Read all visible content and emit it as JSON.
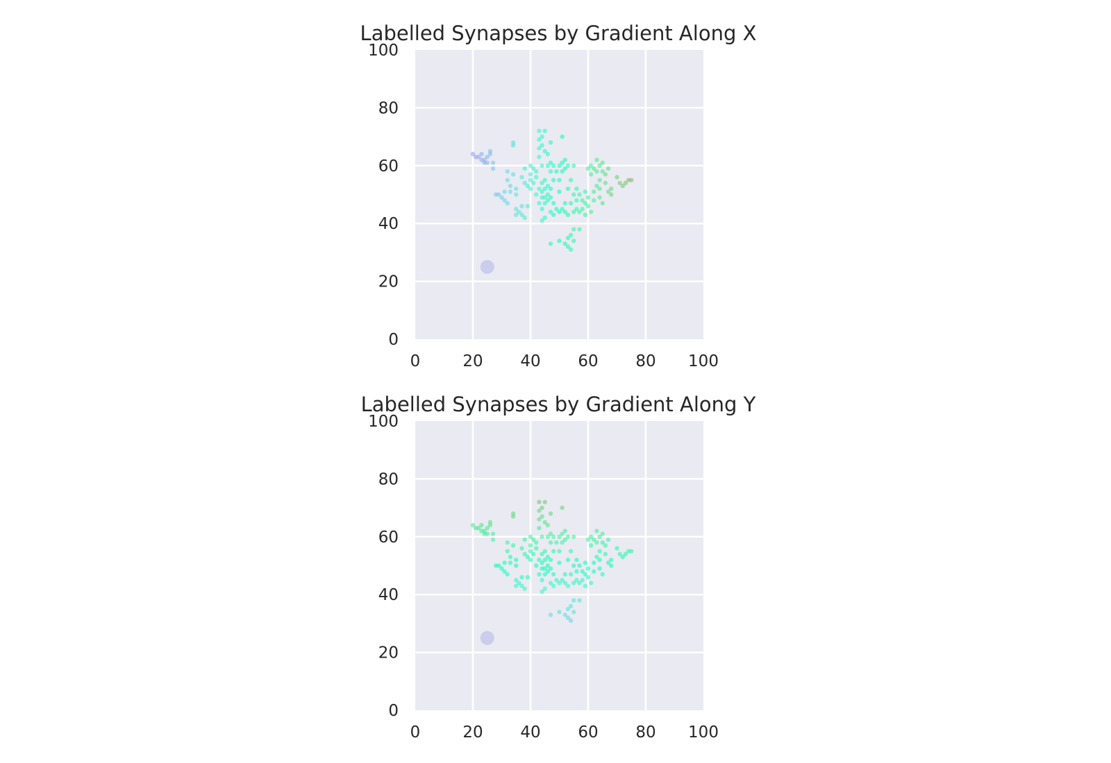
{
  "chart_data": [
    {
      "type": "scatter",
      "title": "Labelled Synapses by Gradient Along X",
      "xlabel": "",
      "ylabel": "",
      "xlim": [
        0,
        100
      ],
      "ylim": [
        0,
        100
      ],
      "xticks": [
        "0",
        "20",
        "40",
        "60",
        "80",
        "100"
      ],
      "yticks": [
        "0",
        "20",
        "40",
        "60",
        "80",
        "100"
      ],
      "grid": true,
      "background": "#eaeaf2",
      "colormap": "rainbow",
      "color_range": [
        0,
        100
      ],
      "color_by": "x",
      "marker": {
        "x": 25,
        "y": 25,
        "color": "#aab0e6"
      },
      "points": [
        [
          20,
          64
        ],
        [
          21,
          63
        ],
        [
          22,
          63
        ],
        [
          23,
          62
        ],
        [
          23,
          64
        ],
        [
          24,
          62
        ],
        [
          24,
          61
        ],
        [
          25,
          63
        ],
        [
          25,
          61
        ],
        [
          26,
          65
        ],
        [
          26,
          64
        ],
        [
          27,
          61
        ],
        [
          27,
          59
        ],
        [
          28,
          50
        ],
        [
          29,
          50
        ],
        [
          30,
          49
        ],
        [
          31,
          51
        ],
        [
          31,
          48
        ],
        [
          32,
          47
        ],
        [
          32,
          55
        ],
        [
          33,
          53
        ],
        [
          33,
          51
        ],
        [
          32,
          58
        ],
        [
          34,
          57
        ],
        [
          34,
          67
        ],
        [
          34,
          68
        ],
        [
          35,
          50
        ],
        [
          35,
          52
        ],
        [
          35,
          45
        ],
        [
          35,
          43
        ],
        [
          36,
          44
        ],
        [
          37,
          43
        ],
        [
          37,
          46
        ],
        [
          37,
          56
        ],
        [
          38,
          54
        ],
        [
          38,
          42
        ],
        [
          39,
          53
        ],
        [
          39,
          46
        ],
        [
          38,
          59
        ],
        [
          40,
          57
        ],
        [
          40,
          55
        ],
        [
          40,
          52
        ],
        [
          40,
          60
        ],
        [
          41,
          59
        ],
        [
          41,
          54
        ],
        [
          42,
          56
        ],
        [
          42,
          50
        ],
        [
          42,
          58
        ],
        [
          43,
          72
        ],
        [
          43,
          69
        ],
        [
          43,
          66
        ],
        [
          43,
          63
        ],
        [
          43,
          52
        ],
        [
          43,
          47
        ],
        [
          44,
          70
        ],
        [
          44,
          67
        ],
        [
          44,
          60
        ],
        [
          44,
          54
        ],
        [
          44,
          51
        ],
        [
          44,
          49
        ],
        [
          44,
          45
        ],
        [
          44,
          41
        ],
        [
          45,
          72
        ],
        [
          45,
          65
        ],
        [
          45,
          55
        ],
        [
          45,
          52
        ],
        [
          45,
          49
        ],
        [
          45,
          47
        ],
        [
          45,
          42
        ],
        [
          46,
          64
        ],
        [
          46,
          60
        ],
        [
          46,
          53
        ],
        [
          46,
          50
        ],
        [
          46,
          48
        ],
        [
          47,
          68
        ],
        [
          47,
          61
        ],
        [
          47,
          58
        ],
        [
          47,
          52
        ],
        [
          47,
          49
        ],
        [
          47,
          44
        ],
        [
          47,
          33
        ],
        [
          48,
          60
        ],
        [
          48,
          55
        ],
        [
          48,
          47
        ],
        [
          48,
          43
        ],
        [
          49,
          58
        ],
        [
          49,
          45
        ],
        [
          50,
          60
        ],
        [
          50,
          55
        ],
        [
          50,
          51
        ],
        [
          50,
          44
        ],
        [
          50,
          34
        ],
        [
          51,
          61
        ],
        [
          51,
          58
        ],
        [
          51,
          70
        ],
        [
          51,
          45
        ],
        [
          52,
          62
        ],
        [
          52,
          59
        ],
        [
          52,
          47
        ],
        [
          52,
          44
        ],
        [
          52,
          33
        ],
        [
          53,
          60
        ],
        [
          53,
          52
        ],
        [
          53,
          43
        ],
        [
          53,
          35
        ],
        [
          53,
          32
        ],
        [
          54,
          55
        ],
        [
          54,
          47
        ],
        [
          54,
          36
        ],
        [
          54,
          31
        ],
        [
          55,
          60
        ],
        [
          55,
          50
        ],
        [
          55,
          44
        ],
        [
          55,
          38
        ],
        [
          55,
          34
        ],
        [
          56,
          52
        ],
        [
          56,
          48
        ],
        [
          56,
          45
        ],
        [
          57,
          50
        ],
        [
          57,
          44
        ],
        [
          57,
          38
        ],
        [
          58,
          48
        ],
        [
          58,
          45
        ],
        [
          59,
          51
        ],
        [
          59,
          47
        ],
        [
          59,
          43
        ],
        [
          60,
          59
        ],
        [
          60,
          49
        ],
        [
          60,
          46
        ],
        [
          61,
          60
        ],
        [
          61,
          57
        ],
        [
          61,
          44
        ],
        [
          62,
          59
        ],
        [
          62,
          51
        ],
        [
          62,
          48
        ],
        [
          63,
          62
        ],
        [
          63,
          58
        ],
        [
          63,
          53
        ],
        [
          64,
          60
        ],
        [
          64,
          55
        ],
        [
          64,
          52
        ],
        [
          64,
          49
        ],
        [
          65,
          61
        ],
        [
          65,
          58
        ],
        [
          65,
          47
        ],
        [
          66,
          57
        ],
        [
          66,
          54
        ],
        [
          67,
          59
        ],
        [
          67,
          51
        ],
        [
          68,
          52
        ],
        [
          68,
          50
        ],
        [
          70,
          56
        ],
        [
          71,
          54
        ],
        [
          72,
          53
        ],
        [
          73,
          54
        ],
        [
          74,
          55
        ],
        [
          75,
          55
        ]
      ]
    },
    {
      "type": "scatter",
      "title": "Labelled Synapses by Gradient Along Y",
      "xlabel": "",
      "ylabel": "",
      "xlim": [
        0,
        100
      ],
      "ylim": [
        0,
        100
      ],
      "xticks": [
        "0",
        "20",
        "40",
        "60",
        "80",
        "100"
      ],
      "yticks": [
        "0",
        "20",
        "40",
        "60",
        "80",
        "100"
      ],
      "grid": true,
      "background": "#eaeaf2",
      "colormap": "rainbow",
      "color_range": [
        0,
        100
      ],
      "color_by": "y",
      "marker": {
        "x": 25,
        "y": 25,
        "color": "#aab0e6"
      },
      "points": [
        [
          20,
          64
        ],
        [
          21,
          63
        ],
        [
          22,
          63
        ],
        [
          23,
          62
        ],
        [
          23,
          64
        ],
        [
          24,
          62
        ],
        [
          24,
          61
        ],
        [
          25,
          63
        ],
        [
          25,
          61
        ],
        [
          26,
          65
        ],
        [
          26,
          64
        ],
        [
          27,
          61
        ],
        [
          27,
          59
        ],
        [
          28,
          50
        ],
        [
          29,
          50
        ],
        [
          30,
          49
        ],
        [
          31,
          51
        ],
        [
          31,
          48
        ],
        [
          32,
          47
        ],
        [
          32,
          55
        ],
        [
          33,
          53
        ],
        [
          33,
          51
        ],
        [
          32,
          58
        ],
        [
          34,
          57
        ],
        [
          34,
          67
        ],
        [
          34,
          68
        ],
        [
          35,
          50
        ],
        [
          35,
          52
        ],
        [
          35,
          45
        ],
        [
          35,
          43
        ],
        [
          36,
          44
        ],
        [
          37,
          43
        ],
        [
          37,
          46
        ],
        [
          37,
          56
        ],
        [
          38,
          54
        ],
        [
          38,
          42
        ],
        [
          39,
          53
        ],
        [
          39,
          46
        ],
        [
          38,
          59
        ],
        [
          40,
          57
        ],
        [
          40,
          55
        ],
        [
          40,
          52
        ],
        [
          40,
          60
        ],
        [
          41,
          59
        ],
        [
          41,
          54
        ],
        [
          42,
          56
        ],
        [
          42,
          50
        ],
        [
          42,
          58
        ],
        [
          43,
          72
        ],
        [
          43,
          69
        ],
        [
          43,
          66
        ],
        [
          43,
          63
        ],
        [
          43,
          52
        ],
        [
          43,
          47
        ],
        [
          44,
          70
        ],
        [
          44,
          67
        ],
        [
          44,
          60
        ],
        [
          44,
          54
        ],
        [
          44,
          51
        ],
        [
          44,
          49
        ],
        [
          44,
          45
        ],
        [
          44,
          41
        ],
        [
          45,
          72
        ],
        [
          45,
          65
        ],
        [
          45,
          55
        ],
        [
          45,
          52
        ],
        [
          45,
          49
        ],
        [
          45,
          47
        ],
        [
          45,
          42
        ],
        [
          46,
          64
        ],
        [
          46,
          60
        ],
        [
          46,
          53
        ],
        [
          46,
          50
        ],
        [
          46,
          48
        ],
        [
          47,
          68
        ],
        [
          47,
          61
        ],
        [
          47,
          58
        ],
        [
          47,
          52
        ],
        [
          47,
          49
        ],
        [
          47,
          44
        ],
        [
          47,
          33
        ],
        [
          48,
          60
        ],
        [
          48,
          55
        ],
        [
          48,
          47
        ],
        [
          48,
          43
        ],
        [
          49,
          58
        ],
        [
          49,
          45
        ],
        [
          50,
          60
        ],
        [
          50,
          55
        ],
        [
          50,
          51
        ],
        [
          50,
          44
        ],
        [
          50,
          34
        ],
        [
          51,
          61
        ],
        [
          51,
          58
        ],
        [
          51,
          70
        ],
        [
          51,
          45
        ],
        [
          52,
          62
        ],
        [
          52,
          59
        ],
        [
          52,
          47
        ],
        [
          52,
          44
        ],
        [
          52,
          33
        ],
        [
          53,
          60
        ],
        [
          53,
          52
        ],
        [
          53,
          43
        ],
        [
          53,
          35
        ],
        [
          53,
          32
        ],
        [
          54,
          55
        ],
        [
          54,
          47
        ],
        [
          54,
          36
        ],
        [
          54,
          31
        ],
        [
          55,
          60
        ],
        [
          55,
          50
        ],
        [
          55,
          44
        ],
        [
          55,
          38
        ],
        [
          55,
          34
        ],
        [
          56,
          52
        ],
        [
          56,
          48
        ],
        [
          56,
          45
        ],
        [
          57,
          50
        ],
        [
          57,
          44
        ],
        [
          57,
          38
        ],
        [
          58,
          48
        ],
        [
          58,
          45
        ],
        [
          59,
          51
        ],
        [
          59,
          47
        ],
        [
          59,
          43
        ],
        [
          60,
          59
        ],
        [
          60,
          49
        ],
        [
          60,
          46
        ],
        [
          61,
          60
        ],
        [
          61,
          57
        ],
        [
          61,
          44
        ],
        [
          62,
          59
        ],
        [
          62,
          51
        ],
        [
          62,
          48
        ],
        [
          63,
          62
        ],
        [
          63,
          58
        ],
        [
          63,
          53
        ],
        [
          64,
          60
        ],
        [
          64,
          55
        ],
        [
          64,
          52
        ],
        [
          64,
          49
        ],
        [
          65,
          61
        ],
        [
          65,
          58
        ],
        [
          65,
          47
        ],
        [
          66,
          57
        ],
        [
          66,
          54
        ],
        [
          67,
          59
        ],
        [
          67,
          51
        ],
        [
          68,
          52
        ],
        [
          68,
          50
        ],
        [
          70,
          56
        ],
        [
          71,
          54
        ],
        [
          72,
          53
        ],
        [
          73,
          54
        ],
        [
          74,
          55
        ],
        [
          75,
          55
        ]
      ]
    }
  ]
}
